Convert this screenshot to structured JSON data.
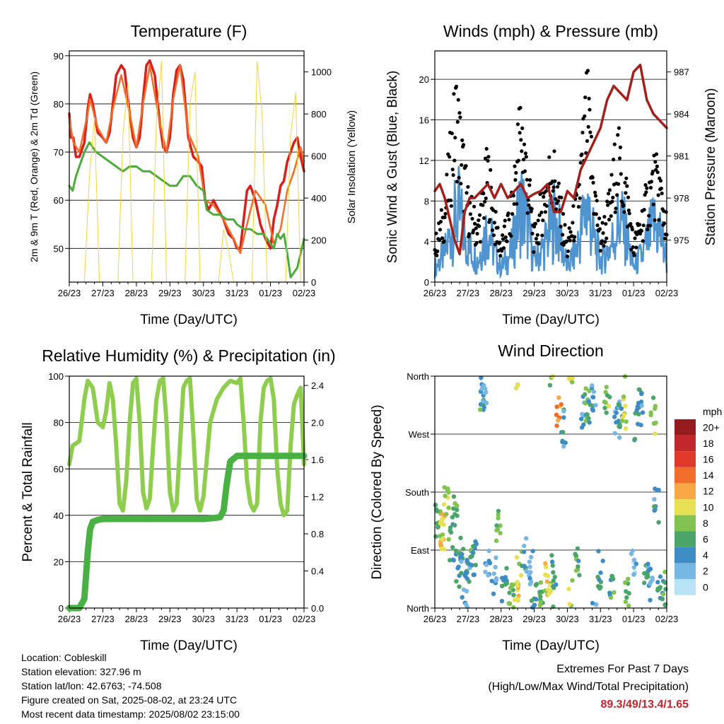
{
  "chart_data": [
    {
      "type": "line",
      "title": "Temperature (F)",
      "xlabel": "Time (Day/UTC)",
      "ylabel": "2m & 9m T (Red, Orange) & 2m Td (Green)",
      "ylabel_right": "Solar Insolation (Yellow)",
      "categories": [
        "26/23",
        "27/23",
        "28/23",
        "29/23",
        "30/23",
        "31/23",
        "01/23",
        "02/23"
      ],
      "yticks": [
        50,
        60,
        70,
        80,
        90
      ],
      "ylim": [
        43,
        91
      ],
      "yticks_right": [
        0,
        200,
        400,
        600,
        800,
        1000
      ],
      "ylim_right": [
        0,
        1100
      ],
      "grid": true,
      "series": [
        {
          "name": "2m T",
          "color": "#d7201c",
          "x": [
            0,
            0.05,
            0.12,
            0.2,
            0.3,
            0.45,
            0.55,
            0.62,
            0.7,
            0.85,
            1,
            1.1,
            1.2,
            1.3,
            1.4,
            1.55,
            1.65,
            1.8,
            1.9,
            2.0,
            2.1,
            2.2,
            2.3,
            2.4,
            2.55,
            2.7,
            2.8,
            2.9,
            3.0,
            3.1,
            3.2,
            3.3,
            3.4,
            3.55,
            3.7,
            3.85,
            3.95,
            4.05,
            4.15,
            4.3,
            4.45,
            4.6,
            4.75,
            4.9,
            5.0,
            5.1,
            5.2,
            5.3,
            5.4,
            5.55,
            5.7,
            5.85,
            6.0,
            6.1,
            6.2,
            6.3,
            6.4,
            6.5,
            6.6,
            6.7,
            6.8,
            6.9,
            7.0
          ],
          "values": [
            78,
            73,
            73,
            69,
            69,
            72,
            79,
            82,
            80,
            74,
            73,
            72,
            74,
            80,
            86,
            88,
            87,
            78,
            73,
            71,
            73,
            81,
            88,
            89,
            86,
            76,
            71,
            70,
            73,
            82,
            87,
            88,
            85,
            73,
            69,
            68,
            67,
            60,
            58,
            60,
            58,
            56,
            53,
            52,
            50,
            50,
            56,
            62,
            63,
            60,
            55,
            52,
            50,
            56,
            59,
            63,
            64,
            68,
            70,
            72,
            73,
            69,
            66
          ]
        },
        {
          "name": "9m T",
          "color": "#f26c2a",
          "x": [
            0,
            0.12,
            0.3,
            0.55,
            0.62,
            0.85,
            1.1,
            1.3,
            1.55,
            1.8,
            2.0,
            2.2,
            2.4,
            2.7,
            2.9,
            3.1,
            3.3,
            3.55,
            3.85,
            4.05,
            4.3,
            4.6,
            4.9,
            5.1,
            5.3,
            5.55,
            5.85,
            6.1,
            6.3,
            6.5,
            6.7,
            6.9,
            7.0
          ],
          "values": [
            77,
            72,
            70,
            78,
            81,
            75,
            72,
            79,
            86,
            78,
            71,
            80,
            88,
            76,
            70,
            81,
            88,
            74,
            69,
            60,
            59,
            56,
            52,
            49,
            55,
            62,
            59,
            51,
            54,
            62,
            66,
            71,
            68
          ]
        },
        {
          "name": "2m Td",
          "color": "#4bab3b",
          "x": [
            0,
            0.1,
            0.2,
            0.3,
            0.45,
            0.6,
            0.8,
            1.0,
            1.2,
            1.4,
            1.6,
            1.8,
            2.0,
            2.2,
            2.4,
            2.6,
            2.8,
            3.0,
            3.2,
            3.4,
            3.6,
            3.8,
            4.0,
            4.1,
            4.3,
            4.5,
            4.7,
            4.9,
            5.0,
            5.2,
            5.4,
            5.6,
            5.8,
            6.0,
            6.1,
            6.2,
            6.3,
            6.4,
            6.5,
            6.6,
            6.8,
            7.0
          ],
          "values": [
            63,
            62,
            65,
            67,
            70,
            72,
            70,
            69,
            68,
            67,
            66,
            67,
            67,
            66,
            66,
            65,
            64,
            63,
            63,
            65,
            65,
            63,
            62,
            58,
            57,
            57,
            56,
            56,
            55,
            54,
            54,
            53,
            53,
            51,
            50,
            53,
            52,
            53,
            49,
            44,
            46,
            52
          ]
        },
        {
          "name": "Solar Insolation",
          "color": "#f5d33a",
          "axis": "right",
          "x": [
            0.45,
            0.6,
            0.75,
            0.9,
            1.45,
            1.6,
            1.75,
            1.9,
            2.45,
            2.6,
            2.75,
            2.9,
            3.45,
            3.6,
            3.75,
            3.9,
            4.45,
            4.6,
            4.75,
            4.9,
            5.45,
            5.6,
            5.75,
            5.9,
            6.45,
            6.6,
            6.75,
            6.9
          ],
          "values": [
            0,
            500,
            780,
            0,
            0,
            700,
            950,
            0,
            0,
            780,
            1050,
            0,
            0,
            850,
            1000,
            0,
            0,
            250,
            150,
            0,
            0,
            1050,
            800,
            0,
            0,
            700,
            900,
            0
          ]
        }
      ]
    },
    {
      "type": "line",
      "title": "Winds (mph) & Pressure (mb)",
      "xlabel": "Time (Day/UTC)",
      "ylabel": "Sonic Wind & Gust (Blue, Black)",
      "ylabel_right": "Station Pressure (Maroon)",
      "categories": [
        "26/23",
        "27/23",
        "28/23",
        "29/23",
        "30/23",
        "31/23",
        "01/23",
        "02/23"
      ],
      "yticks": [
        0,
        4,
        8,
        12,
        16,
        20
      ],
      "ylim": [
        0,
        22.8
      ],
      "yticks_right": [
        975,
        978,
        981,
        984,
        987
      ],
      "ylim_right": [
        972,
        988.5
      ],
      "grid": true,
      "series": [
        {
          "name": "Sonic Wind",
          "color": "#4f93cf",
          "x": [
            0,
            0.3,
            0.5,
            0.7,
            1.0,
            1.3,
            1.6,
            1.8,
            2.0,
            2.3,
            2.6,
            2.8,
            3.0,
            3.3,
            3.6,
            3.8,
            4.0,
            4.3,
            4.6,
            4.8,
            5.0,
            5.3,
            5.6,
            5.8,
            6.0,
            6.3,
            6.6,
            6.8,
            7.0
          ],
          "values": [
            2,
            4,
            7,
            10,
            5,
            3,
            8,
            4,
            2,
            4,
            11,
            8,
            3,
            5,
            9,
            6,
            2,
            5,
            11,
            6,
            3,
            5,
            9,
            6,
            2,
            4,
            8,
            7,
            3
          ]
        },
        {
          "name": "Gust",
          "color": "#000000",
          "x": [
            0,
            0.3,
            0.5,
            0.65,
            1.0,
            1.3,
            1.6,
            1.8,
            2.0,
            2.3,
            2.6,
            2.8,
            3.0,
            3.3,
            3.55,
            3.8,
            4.0,
            4.3,
            4.6,
            4.8,
            5.0,
            5.3,
            5.5,
            5.8,
            6.0,
            6.3,
            6.6,
            6.8,
            7.0
          ],
          "values": [
            4,
            8,
            15,
            20,
            9,
            6,
            13,
            7,
            4,
            8,
            19,
            12,
            5,
            10,
            14,
            8,
            4,
            9,
            20,
            11,
            5,
            9,
            15,
            10,
            4,
            8,
            12,
            11,
            6
          ]
        },
        {
          "name": "Station Pressure",
          "color": "#a3201d",
          "axis": "right",
          "x": [
            0,
            0.15,
            0.3,
            0.45,
            0.6,
            0.75,
            0.9,
            1.05,
            1.2,
            1.4,
            1.6,
            1.8,
            2.0,
            2.2,
            2.4,
            2.6,
            2.8,
            3.0,
            3.2,
            3.4,
            3.6,
            3.8,
            4.0,
            4.2,
            4.4,
            4.6,
            4.8,
            5.0,
            5.2,
            5.4,
            5.6,
            5.8,
            6.0,
            6.2,
            6.4,
            6.6,
            6.8,
            7.0
          ],
          "values": [
            978.5,
            979,
            978,
            976.5,
            975,
            974,
            977,
            978,
            978,
            978.5,
            979,
            978,
            979,
            978,
            978.5,
            979,
            978,
            978.3,
            978.5,
            979,
            977,
            977,
            978.5,
            978,
            980,
            981,
            982,
            983,
            985,
            986,
            985.5,
            985,
            987,
            987.5,
            985,
            984,
            983.5,
            983
          ]
        }
      ]
    },
    {
      "type": "line",
      "title": "Relative Humidity (%) & Precipitation (in)",
      "xlabel": "Time (Day/UTC)",
      "ylabel": "Percent & Total Rainfall",
      "categories": [
        "26/23",
        "27/23",
        "28/23",
        "29/23",
        "30/23",
        "31/23",
        "01/23",
        "02/23"
      ],
      "yticks": [
        0,
        20,
        40,
        60,
        80,
        100
      ],
      "ylim": [
        0,
        100
      ],
      "yticks_right": [
        "0.0",
        "0.4",
        "0.8",
        "1.2",
        "1.6",
        "2.0",
        "2.4"
      ],
      "ylim_right": [
        0,
        2.5
      ],
      "grid": true,
      "series": [
        {
          "name": "Relative Humidity",
          "color": "#8fcd4f",
          "x": [
            0,
            0.1,
            0.3,
            0.45,
            0.55,
            0.7,
            0.85,
            1.0,
            1.1,
            1.2,
            1.3,
            1.4,
            1.5,
            1.6,
            1.7,
            1.8,
            1.9,
            2.0,
            2.1,
            2.2,
            2.3,
            2.4,
            2.5,
            2.6,
            2.7,
            2.8,
            2.9,
            3.0,
            3.1,
            3.2,
            3.3,
            3.4,
            3.5,
            3.6,
            3.7,
            3.8,
            3.9,
            4.0,
            4.2,
            4.4,
            4.6,
            4.8,
            5.0,
            5.1,
            5.2,
            5.3,
            5.4,
            5.5,
            5.6,
            5.7,
            5.8,
            5.9,
            6.0,
            6.1,
            6.2,
            6.3,
            6.4,
            6.5,
            6.6,
            6.7,
            6.8,
            6.9,
            7.0
          ],
          "values": [
            62,
            70,
            72,
            90,
            98,
            95,
            80,
            78,
            85,
            97,
            90,
            70,
            45,
            42,
            55,
            80,
            97,
            99,
            80,
            50,
            43,
            47,
            70,
            90,
            98,
            99,
            80,
            50,
            42,
            45,
            70,
            95,
            98,
            99,
            75,
            47,
            42,
            48,
            80,
            90,
            95,
            98,
            97,
            99,
            80,
            55,
            45,
            42,
            45,
            80,
            95,
            98,
            99,
            90,
            60,
            45,
            40,
            42,
            70,
            88,
            92,
            95,
            62
          ]
        },
        {
          "name": "Total Precipitation",
          "color": "#49b143",
          "axis": "right",
          "x": [
            0,
            0.3,
            0.45,
            0.55,
            0.62,
            0.7,
            0.85,
            1.0,
            2.0,
            3.0,
            4.0,
            4.3,
            4.5,
            4.6,
            4.7,
            4.8,
            5.0,
            5.5,
            6.0,
            6.5,
            7.0
          ],
          "values": [
            0,
            0,
            0.1,
            0.6,
            0.85,
            0.93,
            0.95,
            0.96,
            0.96,
            0.96,
            0.96,
            0.97,
            0.98,
            1.05,
            1.35,
            1.58,
            1.64,
            1.64,
            1.64,
            1.64,
            1.64
          ]
        }
      ]
    },
    {
      "type": "scatter",
      "title": "Wind Direction",
      "xlabel": "Time (Day/UTC)",
      "ylabel": "Direction (Colored By Speed)",
      "categories": [
        "26/23",
        "27/23",
        "28/23",
        "29/23",
        "30/23",
        "31/23",
        "01/23",
        "02/23"
      ],
      "yticks": [
        "North",
        "East",
        "South",
        "West",
        "North"
      ],
      "ylim": [
        0,
        360
      ],
      "grid": true,
      "legend": {
        "title": "mph",
        "placement": "right",
        "labels": [
          "20+",
          "18",
          "16",
          "14",
          "12",
          "10",
          "8",
          "6",
          "4",
          "2",
          "0"
        ],
        "colors": [
          "#961b1e",
          "#c1272d",
          "#e0392b",
          "#f26c2a",
          "#f8a845",
          "#e8e053",
          "#82c250",
          "#4ba56a",
          "#3d8cc4",
          "#78b7e4",
          "#b8e2f5"
        ]
      },
      "series": [
        {
          "name": "Direction",
          "x": [
            0.1,
            0.2,
            0.25,
            0.35,
            0.5,
            0.6,
            0.7,
            0.8,
            0.9,
            1.0,
            1.1,
            1.2,
            1.4,
            1.5,
            1.6,
            1.8,
            1.9,
            2.1,
            2.3,
            2.45,
            2.55,
            2.7,
            2.9,
            3.0,
            3.2,
            3.4,
            3.5,
            3.6,
            3.75,
            3.9,
            4.1,
            4.3,
            4.5,
            4.6,
            4.7,
            4.8,
            5.0,
            5.2,
            5.35,
            5.5,
            5.6,
            5.7,
            5.8,
            6.0,
            6.1,
            6.2,
            6.4,
            6.5,
            6.6,
            6.7,
            6.8,
            6.9
          ],
          "values": [
            230,
            250,
            235,
            200,
            260,
            215,
            300,
            280,
            330,
            290,
            300,
            280,
            30,
            20,
            300,
            310,
            230,
            320,
            340,
            350,
            300,
            280,
            300,
            340,
            330,
            320,
            350,
            300,
            60,
            80,
            340,
            290,
            50,
            40,
            60,
            20,
            300,
            30,
            320,
            70,
            50,
            60,
            340,
            300,
            70,
            50,
            300,
            320,
            60,
            200,
            340,
            330
          ],
          "speeds": [
            7,
            9,
            10,
            8,
            6,
            7,
            5,
            4,
            3,
            4,
            6,
            5,
            6,
            3,
            4,
            3,
            8,
            5,
            7,
            11,
            9,
            4,
            3,
            5,
            7,
            10,
            8,
            5,
            12,
            4,
            9,
            6,
            3,
            7,
            4,
            2,
            5,
            8,
            6,
            3,
            4,
            9,
            7,
            2,
            5,
            4,
            6,
            3,
            8,
            4,
            5,
            6
          ]
        }
      ]
    }
  ],
  "footer": {
    "location": "Location: Cobleskill",
    "elevation": "Station elevation: 327.96 m",
    "latlon": "Station lat/lon: 42.6763; -74.508",
    "created": "Figure created on Sat, 2025-08-02, at 23:24 UTC",
    "timestamp": "Most recent data timestamp: 2025/08/02 23:15:00"
  },
  "extremes": {
    "title": "Extremes For Past 7 Days",
    "subtitle": "(High/Low/Max Wind/Total Precipitation)",
    "values": "89.3/49/13.4/1.65",
    "values_color": "#c0272d"
  }
}
